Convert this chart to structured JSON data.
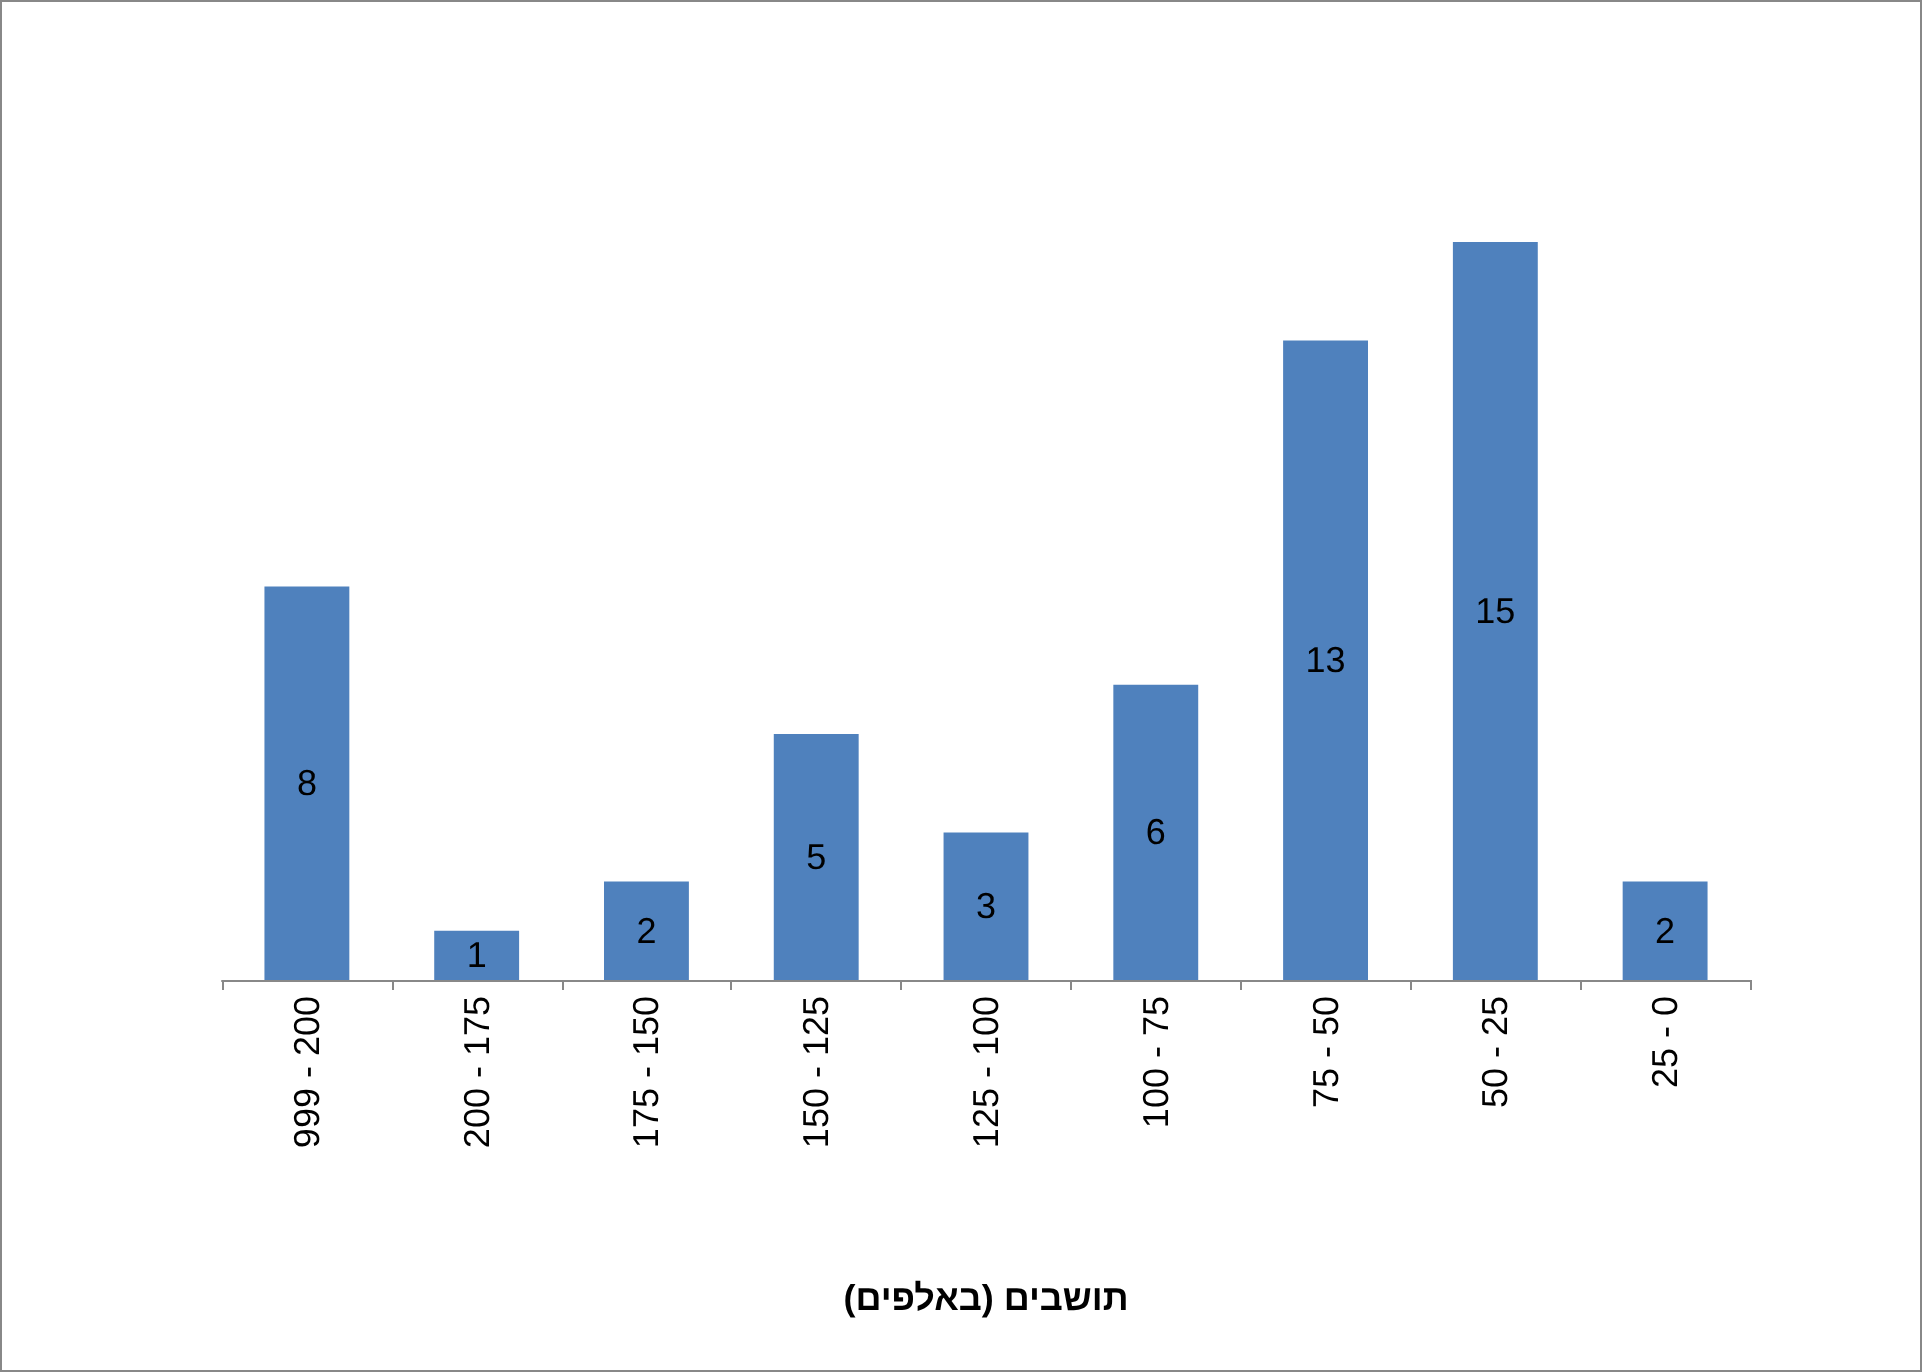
{
  "chart_data": {
    "type": "bar",
    "xlabel": "תושבים (באלפים)",
    "categories": [
      "999 - 200",
      "200 - 175",
      "175 - 150",
      "150 - 125",
      "125 - 100",
      "100 - 75",
      "75 - 50",
      "50 - 25",
      "25 - 0"
    ],
    "values": [
      8,
      1,
      2,
      5,
      3,
      6,
      13,
      15,
      2
    ],
    "color": "#4f81bd",
    "data_labels": true
  }
}
